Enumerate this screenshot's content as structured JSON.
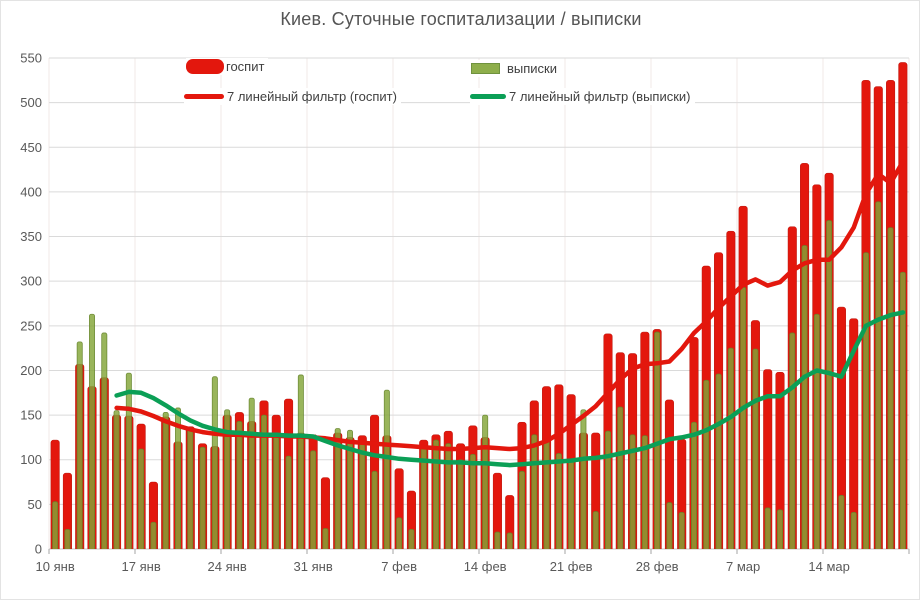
{
  "title": "Киев.  Суточные госпитализации / выписки",
  "legend": {
    "bar_hosp": "госпит",
    "bar_disch": "выписки",
    "line_hosp": "7 линейный фильтр (госпит)",
    "line_disch": "7 линейный фильтр (выписки)"
  },
  "colors": {
    "hosp_bar": "#e3170d",
    "hosp_bar_edge": "#b80f06",
    "disch_bar_fill_rgb": "130,165,55",
    "disch_bar_fill_alpha": 0.82,
    "disch_bar_edge": "#64822a",
    "hosp_line": "#e3170d",
    "disch_line": "#0b9f56",
    "grid_horizontal": "#dadada",
    "grid_vertical": "#f2e8e7",
    "axis_line": "#c6c6c6",
    "tick": "#a6a6a6",
    "axis_text": "#595959",
    "title_text": "#555555"
  },
  "chart_data": {
    "type": "bar",
    "title": "Киев.  Суточные госпитализации / выписки",
    "xlabel": "",
    "ylabel": "",
    "ylim": [
      0,
      550
    ],
    "y_ticks": [
      0,
      50,
      100,
      150,
      200,
      250,
      300,
      350,
      400,
      450,
      500,
      550
    ],
    "x_tick_labels": [
      "10 янв",
      "17 янв",
      "24 янв",
      "31 янв",
      "7 фев",
      "14 фев",
      "21 фев",
      "28 фев",
      "7 мар",
      "14 мар"
    ],
    "x_tick_interval_days": 7,
    "num_days": 70,
    "grid": "horizontal every 50, faint vertical weekly",
    "legend_position": "top inside",
    "series": [
      {
        "name": "госпит",
        "type": "bar",
        "color": "#e3170d",
        "values": [
          122,
          85,
          207,
          182,
          192,
          150,
          149,
          140,
          75,
          148,
          120,
          137,
          118,
          115,
          150,
          153,
          143,
          166,
          150,
          168,
          130,
          128,
          80,
          130,
          125,
          127,
          150,
          127,
          90,
          65,
          122,
          128,
          132,
          118,
          138,
          125,
          85,
          60,
          142,
          166,
          182,
          184,
          173,
          130,
          130,
          241,
          220,
          219,
          243,
          246,
          167,
          123,
          237,
          317,
          332,
          356,
          384,
          256,
          201,
          198,
          361,
          432,
          408,
          421,
          271,
          258,
          525,
          518,
          525,
          545
        ]
      },
      {
        "name": "выписки",
        "type": "bar",
        "color": "#9bbb59",
        "values": [
          53,
          22,
          232,
          263,
          242,
          155,
          197,
          112,
          30,
          153,
          158,
          136,
          114,
          193,
          156,
          143,
          169,
          150,
          130,
          104,
          195,
          110,
          23,
          135,
          133,
          118,
          87,
          178,
          35,
          22,
          115,
          122,
          118,
          100,
          106,
          150,
          19,
          18,
          87,
          128,
          121,
          107,
          100,
          156,
          42,
          132,
          159,
          128,
          127,
          243,
          52,
          41,
          142,
          189,
          196,
          225,
          293,
          224,
          46,
          44,
          242,
          340,
          263,
          368,
          60,
          41,
          332,
          389,
          360,
          310
        ]
      },
      {
        "name": "7 линейный фильтр (госпит)",
        "type": "line",
        "color": "#e3170d",
        "values": [
          null,
          null,
          null,
          null,
          null,
          158,
          157,
          154,
          149,
          143,
          138,
          134,
          131,
          129,
          128,
          128,
          127,
          127,
          127,
          126,
          126,
          125,
          124,
          122,
          120,
          119,
          118,
          117,
          116,
          115,
          114,
          113,
          112,
          112,
          113,
          114,
          113,
          112,
          113,
          116,
          121,
          129,
          139,
          149,
          160,
          175,
          190,
          202,
          207,
          208,
          210,
          224,
          242,
          255,
          270,
          283,
          296,
          302,
          295,
          299,
          312,
          320,
          324,
          324,
          338,
          360,
          398,
          420,
          410,
          434
        ]
      },
      {
        "name": "7 линейный фильтр (выписки)",
        "type": "line",
        "color": "#0b9f56",
        "values": [
          null,
          null,
          null,
          null,
          null,
          172,
          176,
          175,
          169,
          161,
          152,
          144,
          138,
          134,
          131,
          130,
          129,
          128,
          128,
          127,
          127,
          126,
          121,
          116,
          112,
          108,
          105,
          103,
          101,
          100,
          99,
          98,
          97,
          97,
          96,
          96,
          95,
          94,
          95,
          96,
          97,
          98,
          99,
          101,
          102,
          104,
          107,
          110,
          113,
          118,
          123,
          125,
          128,
          133,
          140,
          148,
          158,
          166,
          171,
          171,
          181,
          193,
          200,
          197,
          193,
          222,
          250,
          257,
          262,
          265
        ]
      }
    ]
  }
}
